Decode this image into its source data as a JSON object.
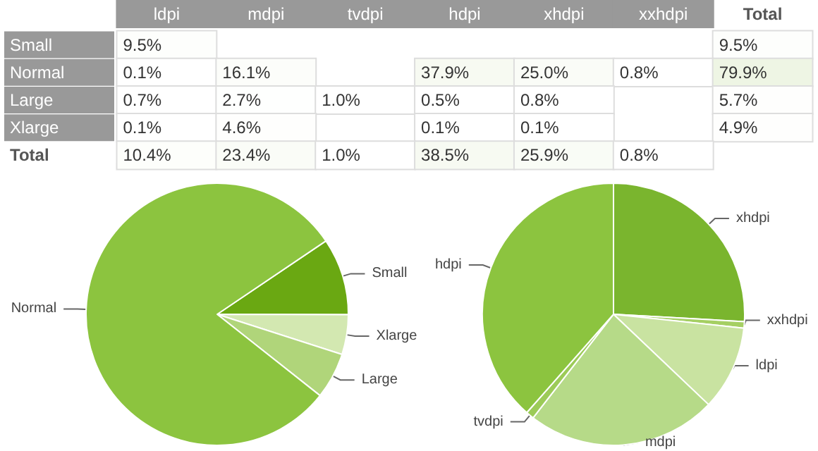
{
  "chart_data": [
    {
      "type": "heatmap",
      "categories": [
        "ldpi",
        "mdpi",
        "tvdpi",
        "hdpi",
        "xhdpi",
        "xxhdpi",
        "Total"
      ],
      "y_categories": [
        "Small",
        "Normal",
        "Large",
        "Xlarge",
        "Total"
      ],
      "cells": [
        [
          9.5,
          null,
          null,
          null,
          null,
          null,
          9.5
        ],
        [
          0.1,
          16.1,
          null,
          37.9,
          25.0,
          0.8,
          79.9
        ],
        [
          0.7,
          2.7,
          1.0,
          0.5,
          0.8,
          null,
          5.7
        ],
        [
          0.1,
          4.6,
          null,
          0.1,
          0.1,
          null,
          4.9
        ],
        [
          10.4,
          23.4,
          1.0,
          38.5,
          25.9,
          0.8,
          null
        ]
      ],
      "cell_labels": [
        [
          "9.5%",
          null,
          null,
          null,
          null,
          null,
          "9.5%"
        ],
        [
          "0.1%",
          "16.1%",
          null,
          "37.9%",
          "25.0%",
          "0.8%",
          "79.9%"
        ],
        [
          "0.7%",
          "2.7%",
          "1.0%",
          "0.5%",
          "0.8%",
          null,
          "5.7%"
        ],
        [
          "0.1%",
          "4.6%",
          null,
          "0.1%",
          "0.1%",
          null,
          "4.9%"
        ],
        [
          "10.4%",
          "23.4%",
          "1.0%",
          "38.5%",
          "25.9%",
          "0.8%",
          null
        ]
      ]
    },
    {
      "type": "pie",
      "categories": [
        "Small",
        "Xlarge",
        "Large",
        "Normal"
      ],
      "values": [
        9.5,
        4.9,
        5.7,
        79.9
      ],
      "colors": [
        "#6aa812",
        "#d3e8b1",
        "#b0d57a",
        "#8cc43f"
      ]
    },
    {
      "type": "pie",
      "categories": [
        "xhdpi",
        "xxhdpi",
        "ldpi",
        "mdpi",
        "tvdpi",
        "hdpi"
      ],
      "values": [
        25.9,
        0.8,
        10.4,
        23.4,
        1.0,
        38.5
      ],
      "colors": [
        "#7ab52e",
        "#a5cf63",
        "#c9e3a1",
        "#b6da88",
        "#9ccb58",
        "#8cc43f"
      ]
    }
  ]
}
